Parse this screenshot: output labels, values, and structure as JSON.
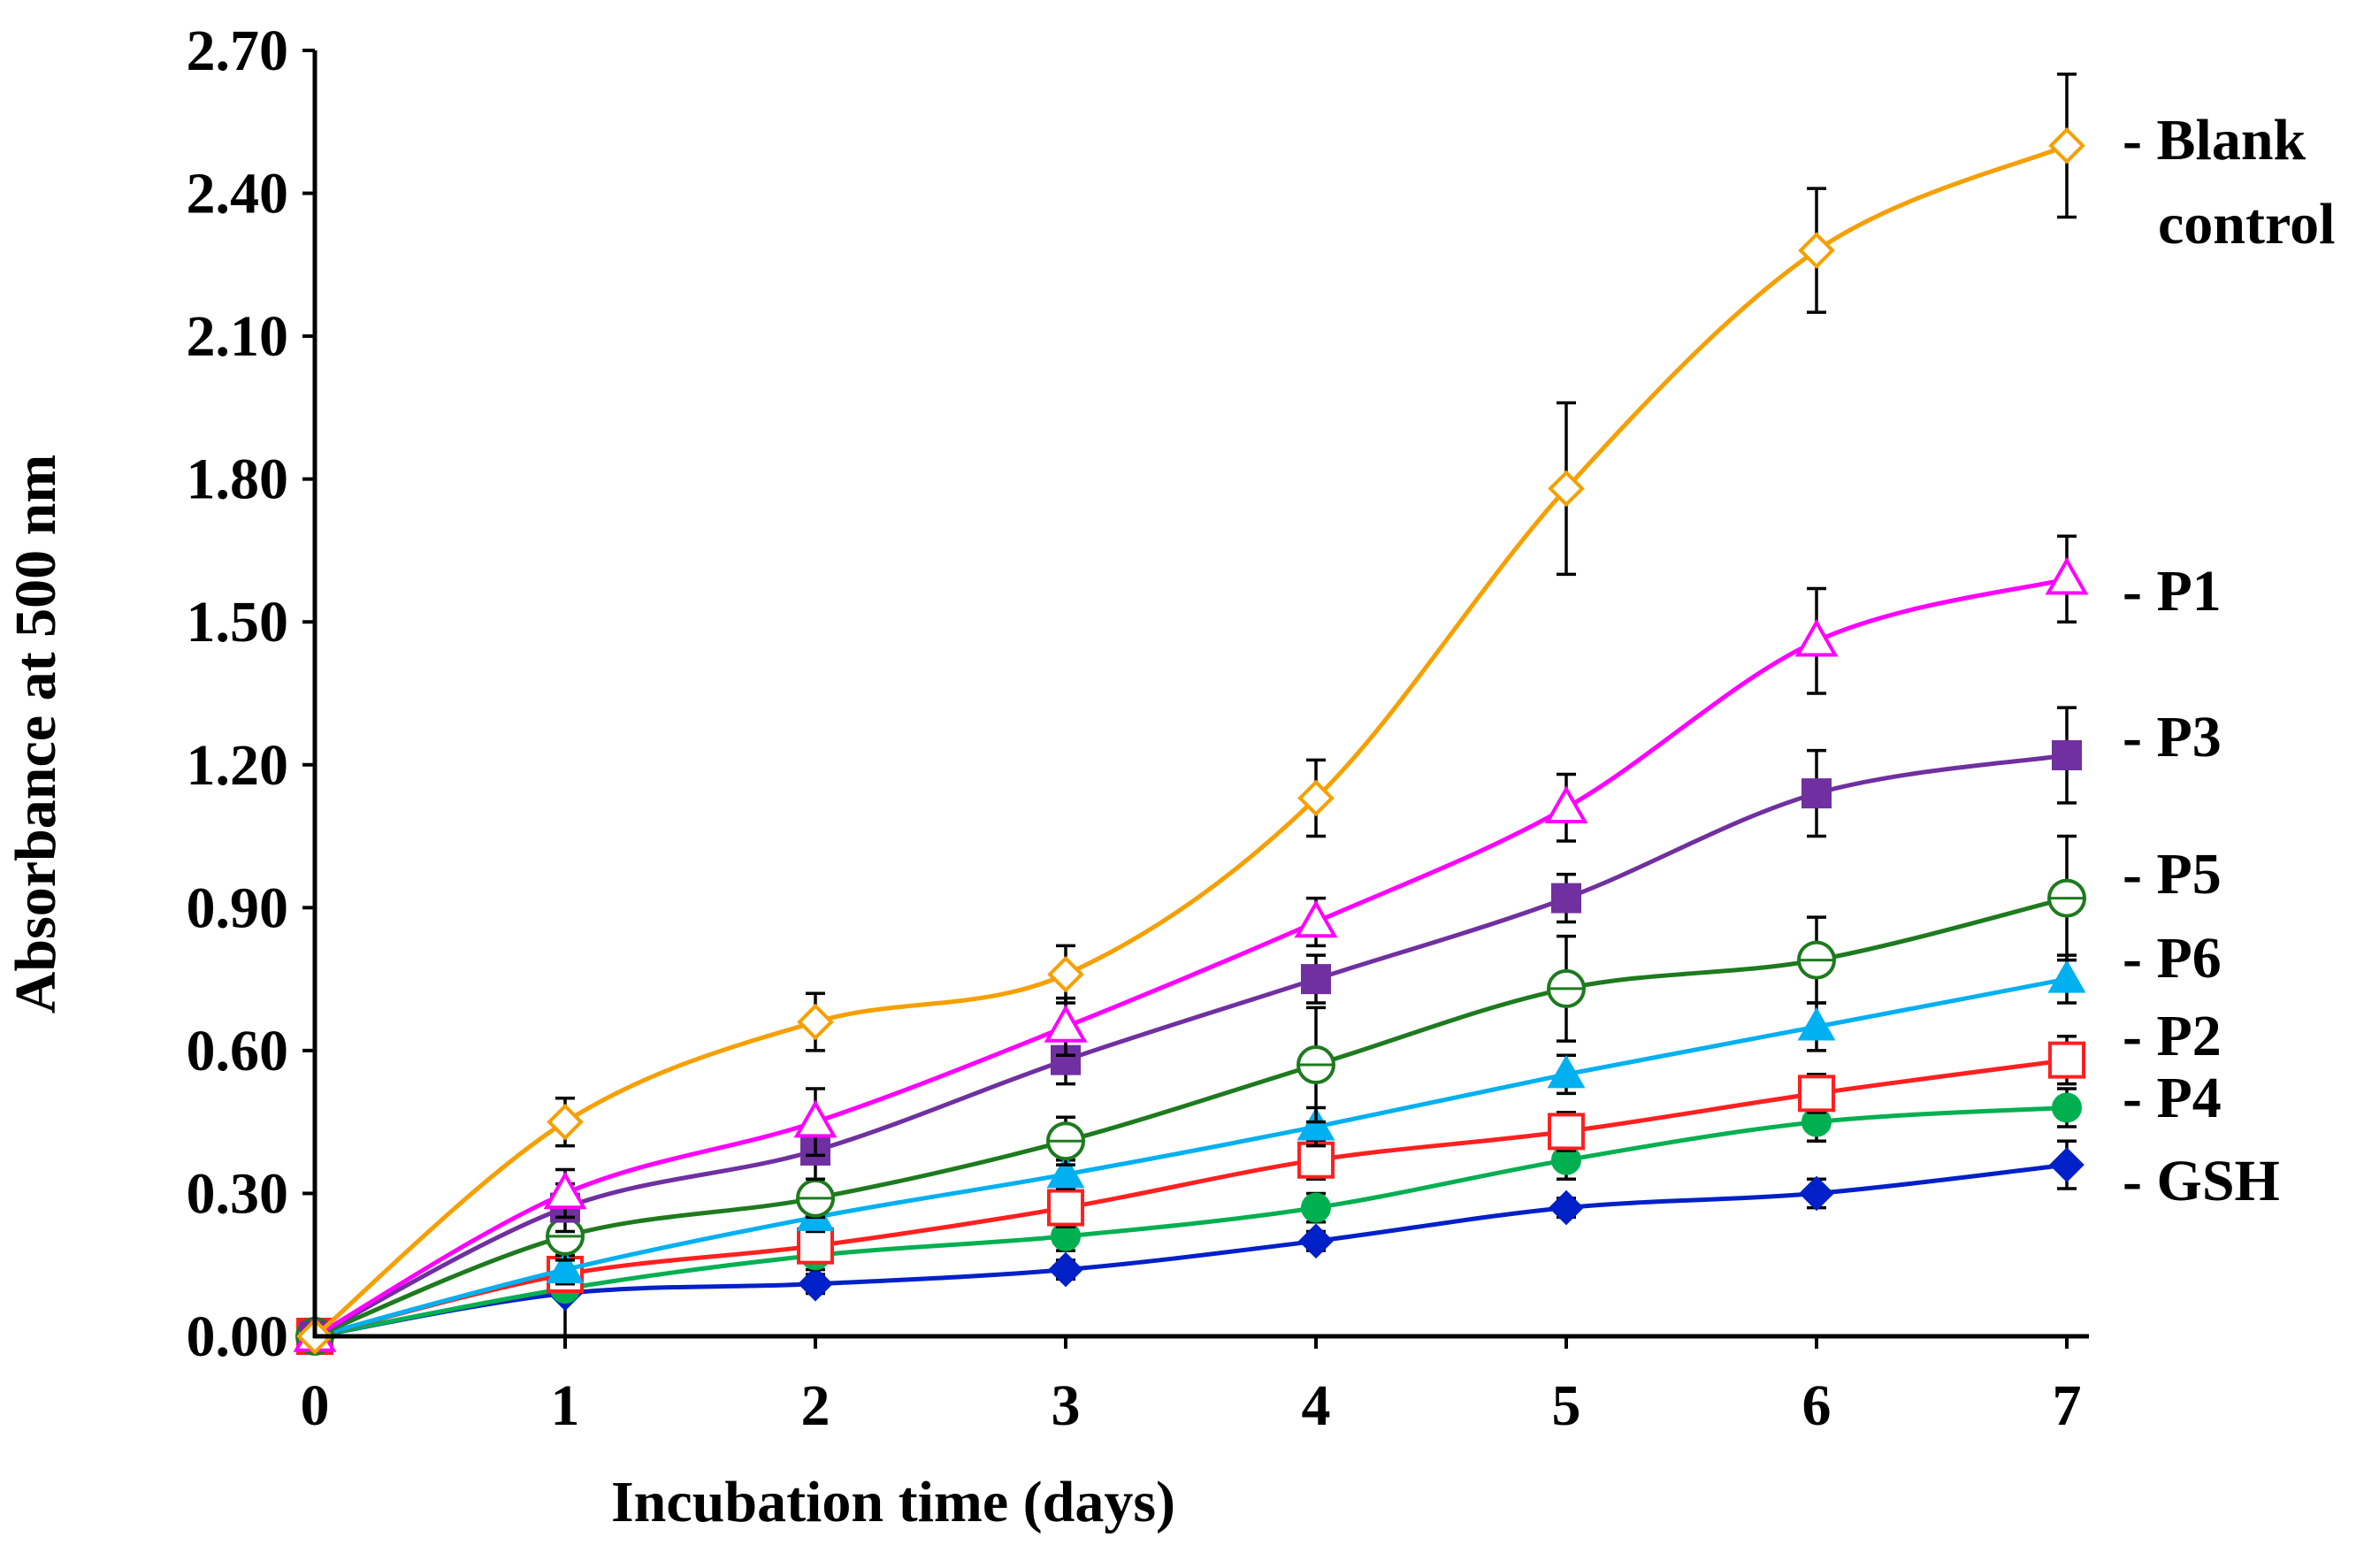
{
  "chart_data": {
    "type": "line",
    "title": "",
    "xlabel": "Incubation time (days)",
    "ylabel": "Absorbance at 500 nm",
    "x": [
      0,
      1,
      2,
      3,
      4,
      5,
      6,
      7
    ],
    "xlim": [
      0,
      7
    ],
    "ylim": [
      0,
      2.7
    ],
    "xticks": [
      "0",
      "1",
      "2",
      "3",
      "4",
      "5",
      "6",
      "7"
    ],
    "yticks": [
      "0.00",
      "0.30",
      "0.60",
      "0.90",
      "1.20",
      "1.50",
      "1.80",
      "2.10",
      "2.40",
      "2.70"
    ],
    "grid": false,
    "legend_placement": "right (inline labels at line ends)",
    "series": [
      {
        "name": "Blank control",
        "label_lines": [
          "- Blank",
          "control"
        ],
        "color": "#F5A000",
        "marker": "diamond-open",
        "values": [
          0,
          0.45,
          0.66,
          0.76,
          1.13,
          1.78,
          2.28,
          2.5
        ],
        "errors": [
          0,
          0.05,
          0.06,
          0.06,
          0.08,
          0.18,
          0.13,
          0.15
        ]
      },
      {
        "name": "P1",
        "label_lines": [
          "- P1"
        ],
        "color": "#FF00FF",
        "marker": "triangle-open",
        "values": [
          0,
          0.3,
          0.45,
          0.65,
          0.87,
          1.11,
          1.46,
          1.59
        ],
        "errors": [
          0,
          0.05,
          0.07,
          0.06,
          0.05,
          0.07,
          0.11,
          0.09
        ]
      },
      {
        "name": "P3",
        "label_lines": [
          "- P3"
        ],
        "color": "#7030A0",
        "marker": "square-filled",
        "values": [
          0,
          0.27,
          0.39,
          0.58,
          0.75,
          0.92,
          1.14,
          1.22
        ],
        "errors": [
          0,
          0.05,
          0.06,
          0.05,
          0.05,
          0.05,
          0.09,
          0.1
        ]
      },
      {
        "name": "P5",
        "label_lines": [
          "- P5"
        ],
        "color": "#1E7A1E",
        "marker": "circle-open",
        "values": [
          0,
          0.21,
          0.29,
          0.41,
          0.57,
          0.73,
          0.79,
          0.92
        ],
        "errors": [
          0,
          0.05,
          0.04,
          0.05,
          0.12,
          0.11,
          0.09,
          0.13
        ]
      },
      {
        "name": "P6",
        "label_lines": [
          "- P6"
        ],
        "color": "#00B0F0",
        "marker": "triangle-filled",
        "values": [
          0,
          0.14,
          0.25,
          0.34,
          0.44,
          0.55,
          0.65,
          0.75
        ],
        "errors": [
          0,
          0.03,
          0.03,
          0.03,
          0.04,
          0.04,
          0.05,
          0.05
        ]
      },
      {
        "name": "P2",
        "label_lines": [
          "- P2"
        ],
        "color": "#FF2020",
        "marker": "square-open",
        "values": [
          0,
          0.13,
          0.19,
          0.27,
          0.37,
          0.43,
          0.51,
          0.58
        ],
        "errors": [
          0,
          0.03,
          0.03,
          0.04,
          0.04,
          0.04,
          0.04,
          0.05
        ]
      },
      {
        "name": "P4",
        "label_lines": [
          "- P4"
        ],
        "color": "#00B050",
        "marker": "circle-filled",
        "values": [
          0,
          0.1,
          0.17,
          0.21,
          0.27,
          0.37,
          0.45,
          0.48
        ],
        "errors": [
          0,
          0.02,
          0.03,
          0.03,
          0.03,
          0.04,
          0.04,
          0.04
        ]
      },
      {
        "name": "GSH",
        "label_lines": [
          "- GSH"
        ],
        "color": "#0020C8",
        "marker": "diamond-filled",
        "values": [
          0,
          0.09,
          0.11,
          0.14,
          0.2,
          0.27,
          0.3,
          0.36
        ],
        "errors": [
          0,
          0.09,
          0.02,
          0.02,
          0.02,
          0.02,
          0.03,
          0.05
        ]
      }
    ]
  }
}
